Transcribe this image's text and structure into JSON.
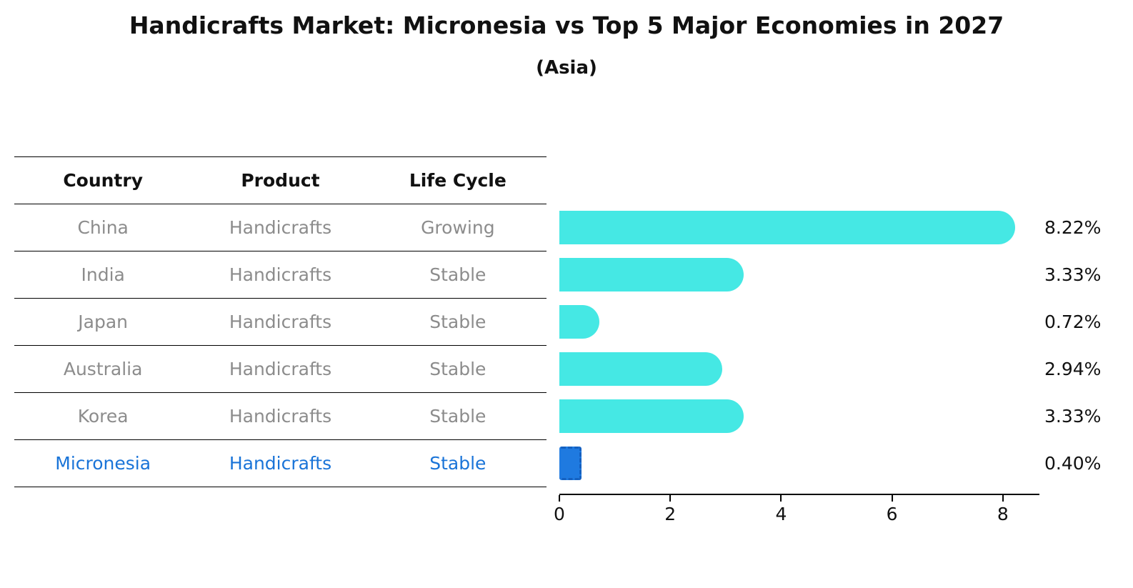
{
  "title": "Handicrafts Market: Micronesia vs Top 5 Major Economies in 2027",
  "subtitle": "(Asia)",
  "table": {
    "headers": [
      "Country",
      "Product",
      "Life Cycle"
    ],
    "rows": [
      {
        "country": "China",
        "product": "Handicrafts",
        "life_cycle": "Growing",
        "highlight": false
      },
      {
        "country": "India",
        "product": "Handicrafts",
        "life_cycle": "Stable",
        "highlight": false
      },
      {
        "country": "Japan",
        "product": "Handicrafts",
        "life_cycle": "Stable",
        "highlight": false
      },
      {
        "country": "Australia",
        "product": "Handicrafts",
        "life_cycle": "Stable",
        "highlight": false
      },
      {
        "country": "Korea",
        "product": "Handicrafts",
        "life_cycle": "Stable",
        "highlight": false
      },
      {
        "country": "Micronesia",
        "product": "Handicrafts",
        "life_cycle": "Stable",
        "highlight": true
      }
    ]
  },
  "chart_data": {
    "type": "bar",
    "orientation": "horizontal",
    "title": "Handicrafts Market: Micronesia vs Top 5 Major Economies in 2027 (Asia)",
    "categories": [
      "China",
      "India",
      "Japan",
      "Australia",
      "Korea",
      "Micronesia"
    ],
    "values": [
      8.22,
      3.33,
      0.72,
      2.94,
      3.33,
      0.4
    ],
    "value_labels": [
      "8.22%",
      "3.33%",
      "0.72%",
      "2.94%",
      "3.33%",
      "0.40%"
    ],
    "x_ticks": [
      0,
      2,
      4,
      6,
      8
    ],
    "xlim": [
      0,
      8.66
    ],
    "xlabel": "",
    "ylabel": "",
    "grid": false,
    "legend": "none",
    "bar_color": "#45e8e4",
    "highlight_color": "#1f7ae0",
    "highlight_index": 5
  }
}
